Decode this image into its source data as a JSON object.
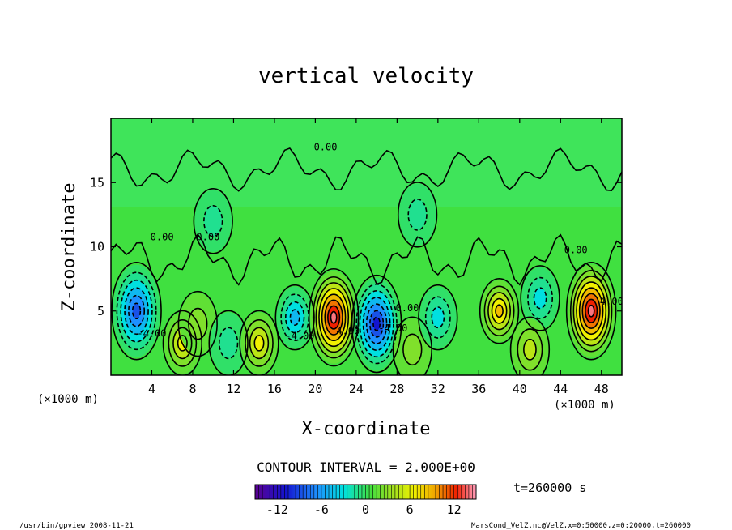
{
  "chart_data": {
    "type": "heatmap",
    "title": "vertical velocity",
    "xlabel": "X-coordinate",
    "ylabel": "Z-coordinate",
    "x_unit_left": "(×1000 m)",
    "x_unit_right": "(×1000 m)",
    "xlim": [
      0,
      50
    ],
    "ylim": [
      0,
      20
    ],
    "x_ticks": [
      4,
      8,
      12,
      16,
      20,
      24,
      28,
      32,
      36,
      40,
      44,
      48
    ],
    "y_ticks": [
      5,
      10,
      15
    ],
    "contour_interval_text": "CONTOUR INTERVAL = 2.000E+00",
    "time_text": "t=260000 s",
    "colorbar": {
      "min": -15,
      "max": 15,
      "ticks": [
        -12,
        -6,
        0,
        6,
        12
      ]
    },
    "contour_labels": [
      {
        "text": "0.00",
        "x": 21,
        "y": 17.5
      },
      {
        "text": "0.00",
        "x": 5,
        "y": 10.5
      },
      {
        "text": "0.00",
        "x": 9.5,
        "y": 10.5
      },
      {
        "text": "0.00",
        "x": 45.5,
        "y": 9.5
      },
      {
        "text": "0.00",
        "x": 29,
        "y": 5
      },
      {
        "text": "-4.00",
        "x": 4,
        "y": 3
      },
      {
        "text": "-4.00",
        "x": 18.5,
        "y": 2.8
      },
      {
        "text": "4.00",
        "x": 23.2,
        "y": 3.2
      },
      {
        "text": "-4.00",
        "x": 27.6,
        "y": 3.4
      },
      {
        "text": "4.00",
        "x": 49,
        "y": 5.5
      }
    ],
    "cells": [
      {
        "x": 2.5,
        "z": 5,
        "w": -11
      },
      {
        "x": 7.0,
        "z": 2.5,
        "w": 7
      },
      {
        "x": 8.5,
        "z": 4,
        "w": 3
      },
      {
        "x": 11.5,
        "z": 2.5,
        "w": -3
      },
      {
        "x": 14.5,
        "z": 2.5,
        "w": 6
      },
      {
        "x": 18.0,
        "z": 4.5,
        "w": -6
      },
      {
        "x": 21.8,
        "z": 4.5,
        "w": 14
      },
      {
        "x": 26.0,
        "z": 4.0,
        "w": -13
      },
      {
        "x": 29.5,
        "z": 2.0,
        "w": 3
      },
      {
        "x": 32.0,
        "z": 4.5,
        "w": -4
      },
      {
        "x": 38.0,
        "z": 5.0,
        "w": 8
      },
      {
        "x": 42.0,
        "z": 6.0,
        "w": -4
      },
      {
        "x": 47.0,
        "z": 5.0,
        "w": 14
      },
      {
        "x": 41.0,
        "z": 2.0,
        "w": 4
      },
      {
        "x": 10.0,
        "z": 12.0,
        "w": -2
      },
      {
        "x": 30.0,
        "z": 12.5,
        "w": -1
      }
    ]
  },
  "footer": {
    "left_text": "/usr/bin/gpview  2008-11-21",
    "right_text": "MarsCond_VelZ.nc@VelZ,x=0:50000,z=0:20000,t=260000"
  }
}
